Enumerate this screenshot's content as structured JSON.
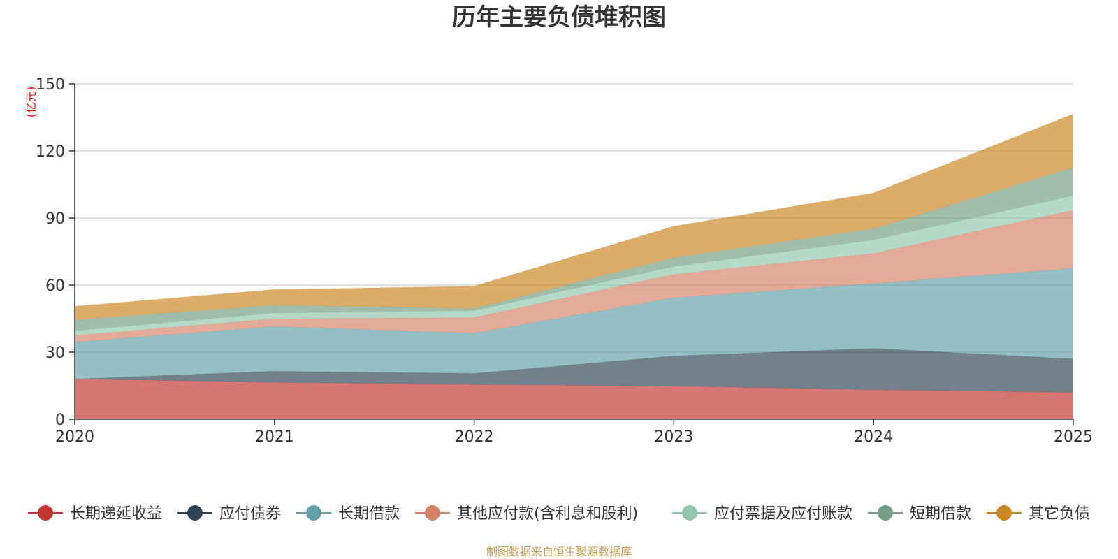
{
  "chart_data": {
    "type": "area",
    "stacked": true,
    "title": "历年主要负债堆积图",
    "unit": "(亿元)",
    "source": "制图数据来自恒生聚源数据库",
    "x": [
      "2020",
      "2021",
      "2022",
      "2023",
      "2024",
      "2025"
    ],
    "ylim": [
      0,
      150
    ],
    "yticks": [
      0,
      30,
      60,
      90,
      120,
      150
    ],
    "grid": true,
    "legend_position": "bottom",
    "series": [
      {
        "name": "长期递延收益",
        "color": "#c23531",
        "values": [
          18,
          16.5,
          15.5,
          14.8,
          13.2,
          12
        ]
      },
      {
        "name": "应付债券",
        "color": "#2f4554",
        "values": [
          0,
          5,
          5,
          13.5,
          18.5,
          15
        ]
      },
      {
        "name": "长期借款",
        "color": "#61a0a8",
        "values": [
          16.5,
          20,
          18,
          26,
          29,
          40.5
        ]
      },
      {
        "name": "其他应付款(含利息和股利)",
        "color": "#d48265",
        "values": [
          3,
          3.5,
          7,
          10.5,
          13.5,
          26
        ]
      },
      {
        "name": "应付票据及应付账款",
        "color": "#91c7ae",
        "values": [
          2,
          2.5,
          3,
          3.5,
          6,
          6.5
        ]
      },
      {
        "name": "短期借款",
        "color": "#749f83",
        "values": [
          5,
          3.5,
          1,
          4,
          5,
          12.5
        ]
      },
      {
        "name": "其它负债",
        "color": "#ca8622",
        "values": [
          6,
          7,
          10,
          14,
          16,
          24
        ]
      }
    ]
  }
}
